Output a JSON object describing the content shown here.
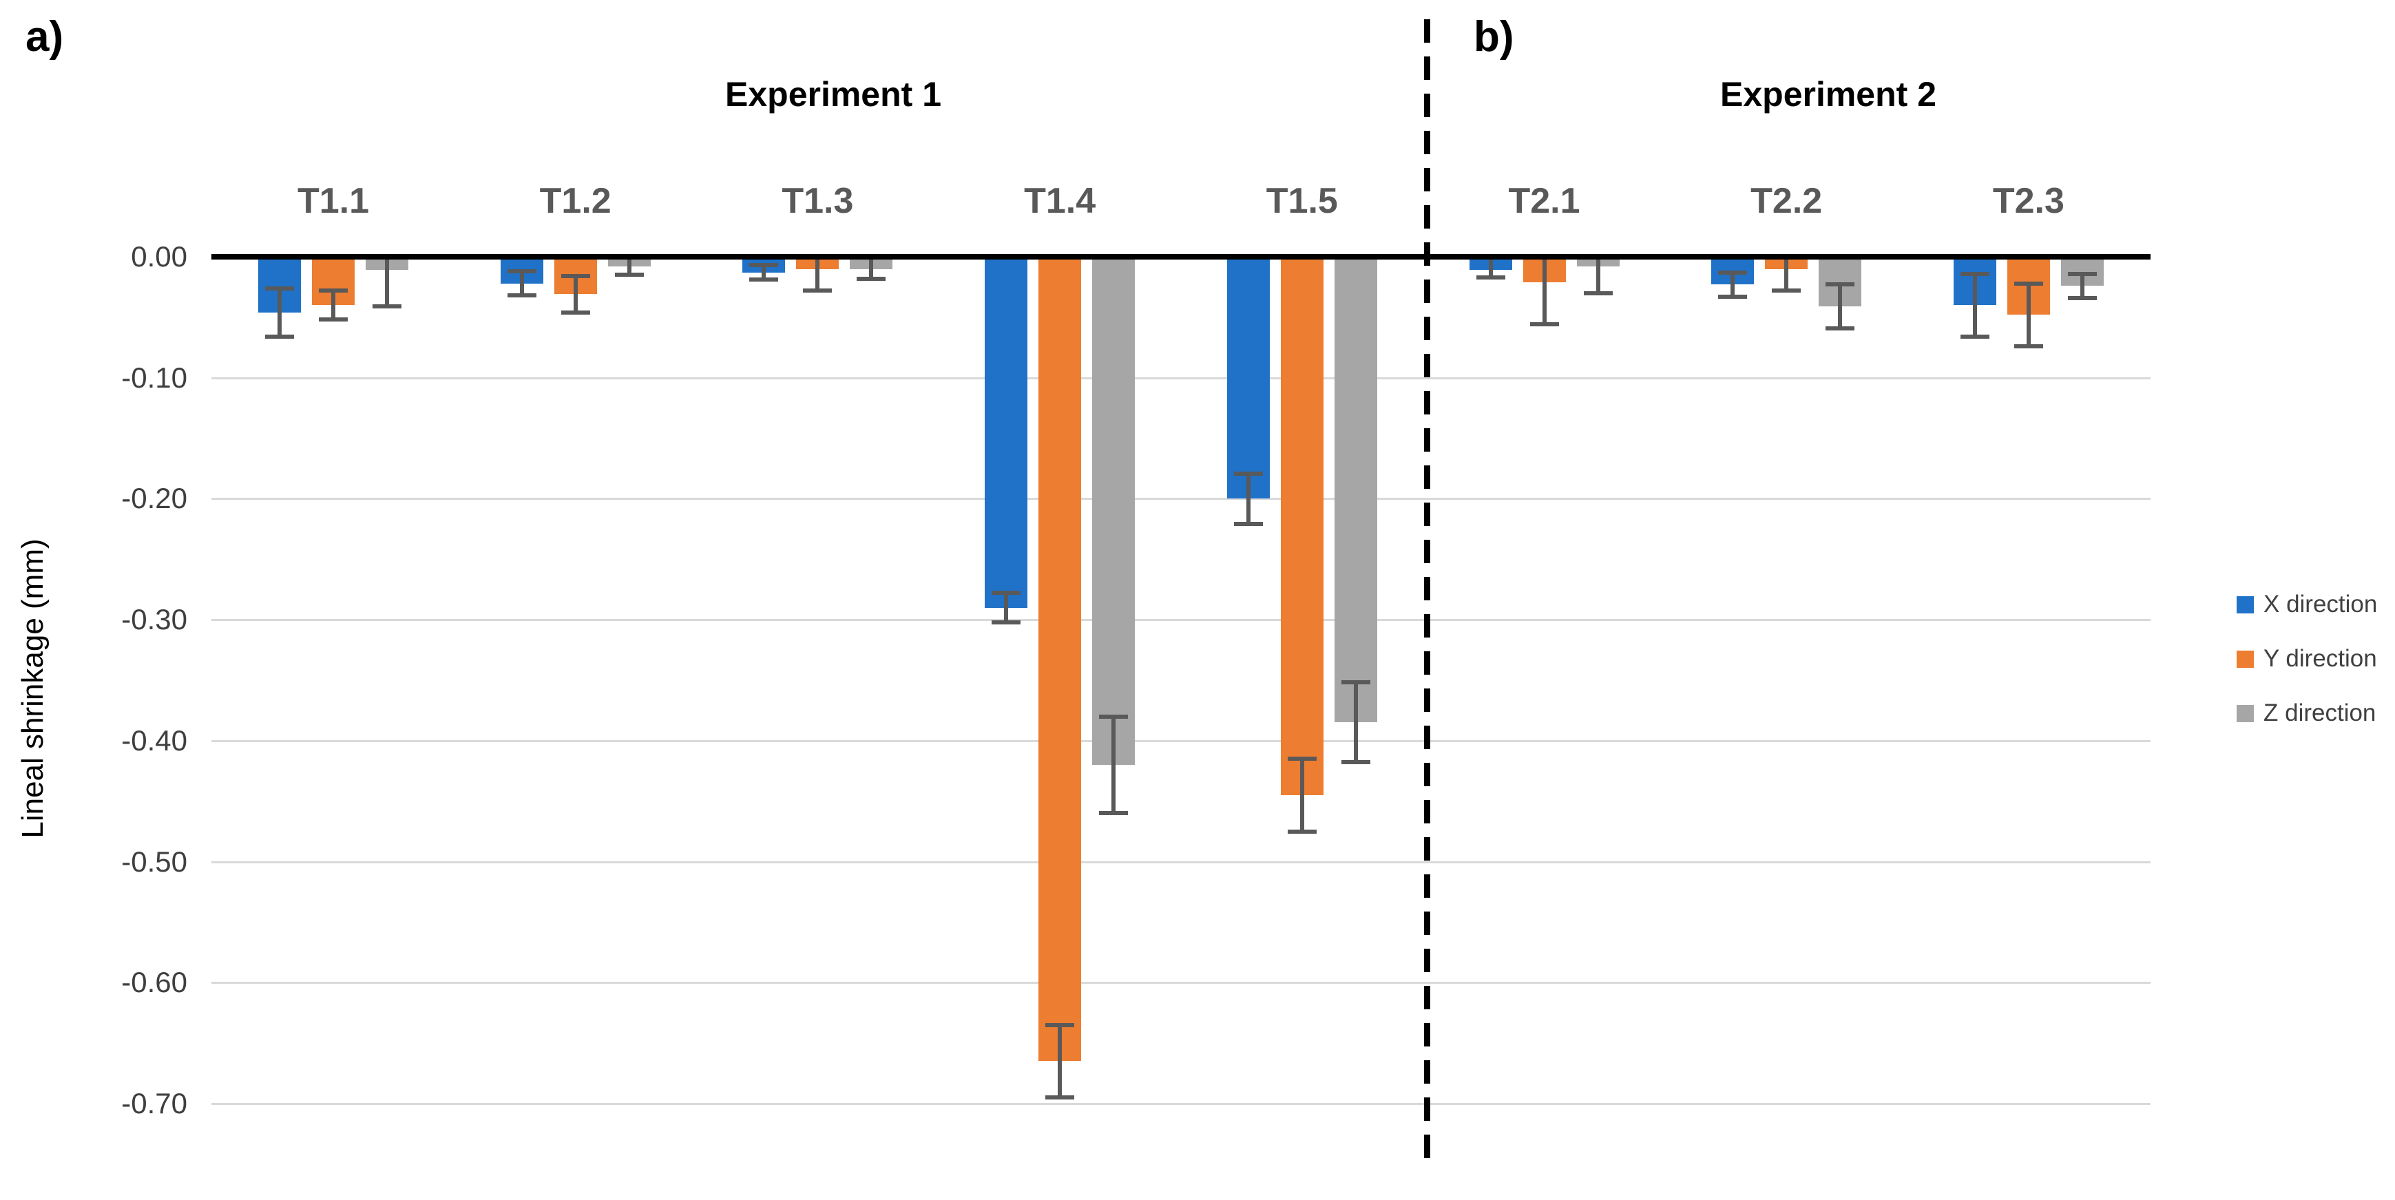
{
  "panel_a": {
    "label": "a)",
    "title": "Experiment 1"
  },
  "panel_b": {
    "label": "b)",
    "title": "Experiment 2"
  },
  "y_axis": {
    "title": "Lineal shrinkage (mm)",
    "ticks": [
      "0.00",
      "-0.10",
      "-0.20",
      "-0.30",
      "-0.40",
      "-0.50",
      "-0.60",
      "-0.70"
    ],
    "max": 0.0,
    "min": -0.7,
    "tick_step": 0.1
  },
  "legend": {
    "position": "right",
    "entries": [
      "X direction",
      "Y direction",
      "Z direction"
    ]
  },
  "colors": {
    "x_direction": "#1f72c8",
    "y_direction": "#ed7d31",
    "z_direction": "#a6a6a6",
    "error_bar": "#595959",
    "gridline": "#d9d9d9",
    "group_label": "#595959",
    "axis_line": "#000000"
  },
  "chart_data": {
    "type": "bar",
    "title": "",
    "xlabel": "",
    "ylabel": "Lineal shrinkage (mm)",
    "ylim": [
      -0.7,
      0.0
    ],
    "grid": true,
    "error_bars": true,
    "categories": [
      "T1.1",
      "T1.2",
      "T1.3",
      "T1.4",
      "T1.5",
      "T2.1",
      "T2.2",
      "T2.3"
    ],
    "panels": [
      {
        "label": "a)",
        "title": "Experiment 1",
        "categories": [
          "T1.1",
          "T1.2",
          "T1.3",
          "T1.4",
          "T1.5"
        ],
        "bar_style": "solid"
      },
      {
        "label": "b)",
        "title": "Experiment 2",
        "categories": [
          "T2.1",
          "T2.2",
          "T2.3"
        ],
        "bar_style": "white-dotted"
      }
    ],
    "series": [
      {
        "name": "X direction",
        "color": "#1f72c8",
        "values": [
          -0.046,
          -0.022,
          -0.013,
          -0.29,
          -0.2,
          -0.011,
          -0.023,
          -0.04
        ],
        "errors": [
          0.02,
          0.01,
          0.006,
          0.012,
          0.021,
          0.006,
          0.01,
          0.026
        ]
      },
      {
        "name": "Y direction",
        "color": "#ed7d31",
        "values": [
          -0.04,
          -0.031,
          -0.01,
          -0.665,
          -0.445,
          -0.021,
          -0.01,
          -0.048
        ],
        "errors": [
          0.012,
          0.015,
          0.018,
          0.03,
          0.03,
          0.035,
          0.018,
          0.026
        ]
      },
      {
        "name": "Z direction",
        "color": "#a6a6a6",
        "values": [
          -0.011,
          -0.008,
          -0.01,
          -0.42,
          -0.385,
          -0.008,
          -0.041,
          -0.024
        ],
        "errors": [
          0.03,
          0.007,
          0.008,
          0.04,
          0.033,
          0.022,
          0.018,
          0.01
        ]
      }
    ]
  }
}
